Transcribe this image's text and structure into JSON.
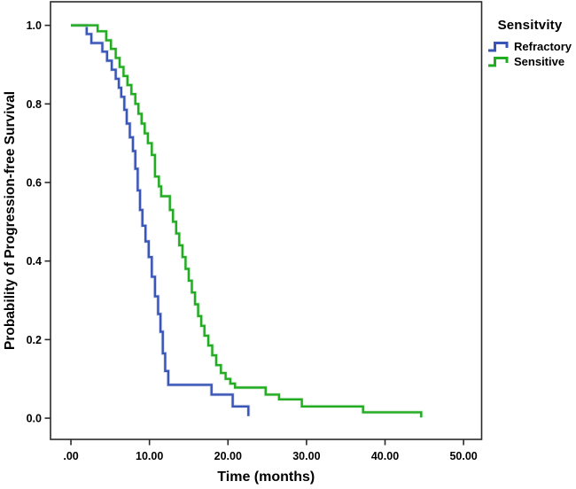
{
  "figure": {
    "background": "#ffffff",
    "frame_color": "#2a2a2a",
    "text_color": "#000000"
  },
  "chart_data": {
    "type": "line",
    "subtype": "kaplan_meier_step",
    "title": "",
    "xlabel": "Time (months)",
    "ylabel": "Probability of Progression-free Survival",
    "grid": false,
    "xlim": [
      -2.6,
      52.3
    ],
    "ylim": [
      -0.054,
      1.06
    ],
    "xtick_values": [
      0,
      10,
      20,
      30,
      40,
      50
    ],
    "xtick_labels": [
      ".00",
      "10.00",
      "20.00",
      "30.00",
      "40.00",
      "50.00"
    ],
    "ytick_values": [
      0.0,
      0.2,
      0.4,
      0.6,
      0.8,
      1.0
    ],
    "ytick_labels": [
      "0.0",
      "0.2",
      "0.4",
      "0.6",
      "0.8",
      "1.0"
    ],
    "legend": {
      "title": "Sensitvity",
      "position": "outside-top-right"
    },
    "series": [
      {
        "name": "Refractory",
        "color": "#3a55b8",
        "halo_color": "#c3cde8",
        "points": [
          [
            0,
            1.0
          ],
          [
            2.0,
            0.978
          ],
          [
            2.6,
            0.955
          ],
          [
            4.0,
            0.933
          ],
          [
            4.6,
            0.91
          ],
          [
            5.2,
            0.887
          ],
          [
            5.7,
            0.864
          ],
          [
            6.1,
            0.841
          ],
          [
            6.4,
            0.818
          ],
          [
            6.8,
            0.785
          ],
          [
            7.1,
            0.75
          ],
          [
            7.5,
            0.715
          ],
          [
            7.9,
            0.68
          ],
          [
            8.2,
            0.635
          ],
          [
            8.5,
            0.58
          ],
          [
            8.8,
            0.53
          ],
          [
            9.1,
            0.49
          ],
          [
            9.5,
            0.45
          ],
          [
            9.9,
            0.41
          ],
          [
            10.3,
            0.36
          ],
          [
            10.7,
            0.31
          ],
          [
            11.1,
            0.265
          ],
          [
            11.4,
            0.22
          ],
          [
            11.7,
            0.165
          ],
          [
            12.0,
            0.12
          ],
          [
            12.4,
            0.085
          ],
          [
            17.9,
            0.06
          ],
          [
            20.6,
            0.03
          ],
          [
            22.6,
            0.005
          ]
        ]
      },
      {
        "name": "Sensitive",
        "color": "#22ac22",
        "halo_color": "#c8e6c8",
        "points": [
          [
            0,
            1.0
          ],
          [
            3.4,
            0.985
          ],
          [
            4.5,
            0.962
          ],
          [
            5.1,
            0.94
          ],
          [
            5.7,
            0.917
          ],
          [
            6.2,
            0.894
          ],
          [
            6.7,
            0.871
          ],
          [
            7.2,
            0.848
          ],
          [
            7.7,
            0.825
          ],
          [
            8.2,
            0.8
          ],
          [
            8.6,
            0.775
          ],
          [
            9.0,
            0.75
          ],
          [
            9.4,
            0.725
          ],
          [
            9.8,
            0.7
          ],
          [
            10.3,
            0.67
          ],
          [
            10.7,
            0.615
          ],
          [
            11.2,
            0.59
          ],
          [
            11.5,
            0.565
          ],
          [
            12.6,
            0.53
          ],
          [
            13.0,
            0.5
          ],
          [
            13.4,
            0.47
          ],
          [
            13.8,
            0.44
          ],
          [
            14.2,
            0.41
          ],
          [
            14.6,
            0.38
          ],
          [
            15.0,
            0.35
          ],
          [
            15.4,
            0.32
          ],
          [
            15.8,
            0.29
          ],
          [
            16.2,
            0.26
          ],
          [
            16.6,
            0.235
          ],
          [
            17.0,
            0.21
          ],
          [
            17.5,
            0.185
          ],
          [
            18.0,
            0.16
          ],
          [
            18.5,
            0.135
          ],
          [
            19.1,
            0.115
          ],
          [
            19.7,
            0.1
          ],
          [
            20.3,
            0.088
          ],
          [
            20.9,
            0.078
          ],
          [
            24.8,
            0.06
          ],
          [
            26.5,
            0.048
          ],
          [
            29.4,
            0.03
          ],
          [
            37.2,
            0.015
          ],
          [
            44.6,
            0.002
          ]
        ]
      }
    ]
  }
}
